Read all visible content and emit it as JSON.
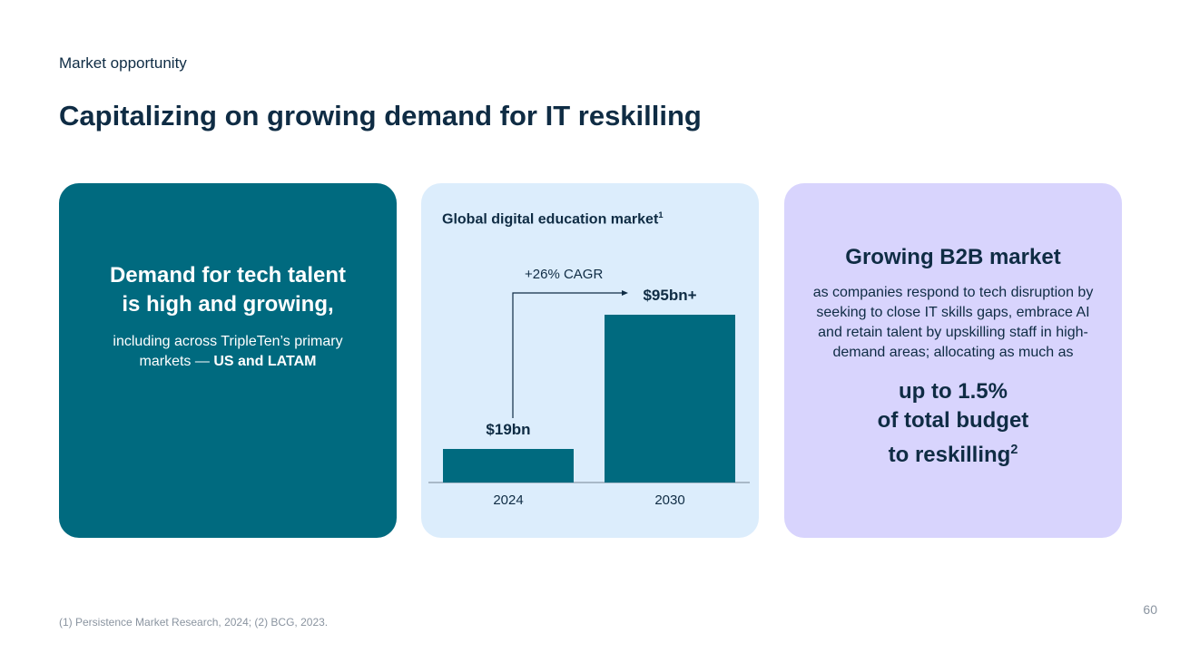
{
  "header": {
    "eyebrow": "Market opportunity",
    "title": "Capitalizing on growing demand for IT reskilling"
  },
  "card_left": {
    "headline_1": "Demand for tech talent",
    "headline_2": "is high and growing,",
    "body": "including across TripleTen’s primary markets — ",
    "body_bold": "US and LATAM"
  },
  "card_middle": {
    "title": "Global digital education market",
    "title_sup": "1",
    "cagr_label": "+26% CAGR"
  },
  "chart_data": {
    "type": "bar",
    "title": "Global digital education market",
    "categories": [
      "2024",
      "2030"
    ],
    "values": [
      19,
      95
    ],
    "data_labels": [
      "$19bn",
      "$95bn+"
    ],
    "annotation": "+26% CAGR",
    "unit": "$bn",
    "color": "#006a7f"
  },
  "card_right": {
    "headline": "Growing B2B market",
    "body": "as companies respond to tech disruption by seeking to close IT skills gaps, embrace AI and retain talent by upskilling staff in high-demand areas; allocating as much as",
    "big_1": "up to 1.5%",
    "big_2": "of total budget",
    "big_3": "to reskilling",
    "big_sup": "2"
  },
  "footer": {
    "note": "(1) Persistence Market Research, 2024; (2) BCG, 2023.",
    "page": "60"
  }
}
